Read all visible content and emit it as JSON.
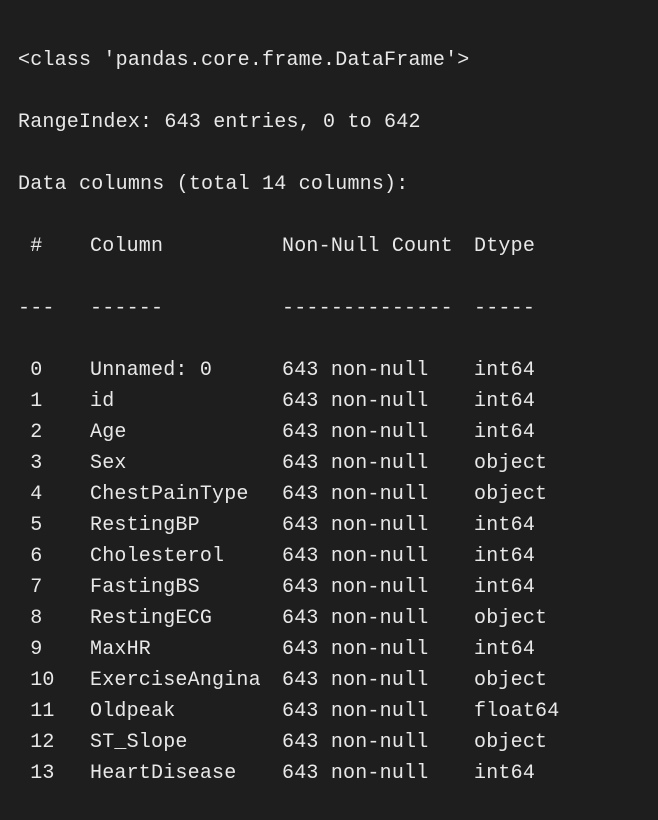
{
  "background_color": "#1e1e1e",
  "text_color": "#e8e8e8",
  "font_family": "SF Mono, Menlo, Consolas, Courier New, monospace",
  "font_size_pt": 15,
  "intro": {
    "class_line": "<class 'pandas.core.frame.DataFrame'>",
    "range_index": "RangeIndex: 643 entries, 0 to 642",
    "data_columns": "Data columns (total 14 columns):"
  },
  "header": {
    "idx": " # ",
    "column": "Column",
    "non_null": "Non-Null Count",
    "dtype": "Dtype"
  },
  "separator": {
    "idx": "---",
    "column": "------",
    "non_null": "--------------",
    "dtype": "-----"
  },
  "col_widths_ch": {
    "idx": 3,
    "gap0": 3,
    "column": 14,
    "gap1": 2,
    "non_null": 14,
    "gap2": 2
  },
  "rows": [
    {
      "idx": " 0 ",
      "column": "Unnamed: 0",
      "non_null": "643 non-null",
      "dtype": "int64"
    },
    {
      "idx": " 1 ",
      "column": "id",
      "non_null": "643 non-null",
      "dtype": "int64"
    },
    {
      "idx": " 2 ",
      "column": "Age",
      "non_null": "643 non-null",
      "dtype": "int64"
    },
    {
      "idx": " 3 ",
      "column": "Sex",
      "non_null": "643 non-null",
      "dtype": "object"
    },
    {
      "idx": " 4 ",
      "column": "ChestPainType",
      "non_null": "643 non-null",
      "dtype": "object"
    },
    {
      "idx": " 5 ",
      "column": "RestingBP",
      "non_null": "643 non-null",
      "dtype": "int64"
    },
    {
      "idx": " 6 ",
      "column": "Cholesterol",
      "non_null": "643 non-null",
      "dtype": "int64"
    },
    {
      "idx": " 7 ",
      "column": "FastingBS",
      "non_null": "643 non-null",
      "dtype": "int64"
    },
    {
      "idx": " 8 ",
      "column": "RestingECG",
      "non_null": "643 non-null",
      "dtype": "object"
    },
    {
      "idx": " 9 ",
      "column": "MaxHR",
      "non_null": "643 non-null",
      "dtype": "int64"
    },
    {
      "idx": " 10",
      "column": "ExerciseAngina",
      "non_null": "643 non-null",
      "dtype": "object"
    },
    {
      "idx": " 11",
      "column": "Oldpeak",
      "non_null": "643 non-null",
      "dtype": "float64"
    },
    {
      "idx": " 12",
      "column": "ST_Slope",
      "non_null": "643 non-null",
      "dtype": "object"
    },
    {
      "idx": " 13",
      "column": "HeartDisease",
      "non_null": "643 non-null",
      "dtype": "int64"
    }
  ]
}
